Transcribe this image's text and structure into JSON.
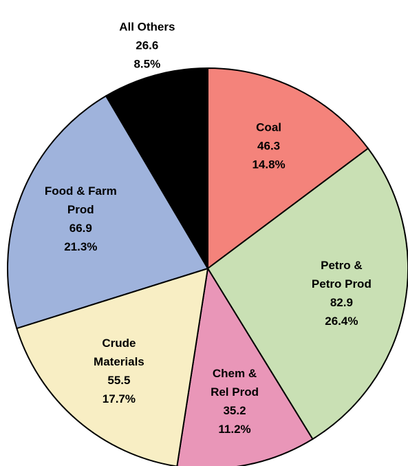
{
  "chart_data": {
    "type": "pie",
    "categories": [
      [
        "Coal"
      ],
      [
        "Petro &",
        "Petro Prod"
      ],
      [
        "Chem &",
        "Rel Prod"
      ],
      [
        "Crude",
        "Materials"
      ],
      [
        "Food & Farm",
        "Prod"
      ],
      [
        "All Others"
      ]
    ],
    "values": [
      46.3,
      82.9,
      35.2,
      55.5,
      66.9,
      26.6
    ],
    "percent_labels": [
      "14.8%",
      "26.4%",
      "11.2%",
      "17.7%",
      "21.3%",
      "8.5%"
    ],
    "colors": [
      "#f4837b",
      "#c9e0b4",
      "#e996b8",
      "#f8eec4",
      "#9fb3dc",
      "#000000"
    ]
  }
}
